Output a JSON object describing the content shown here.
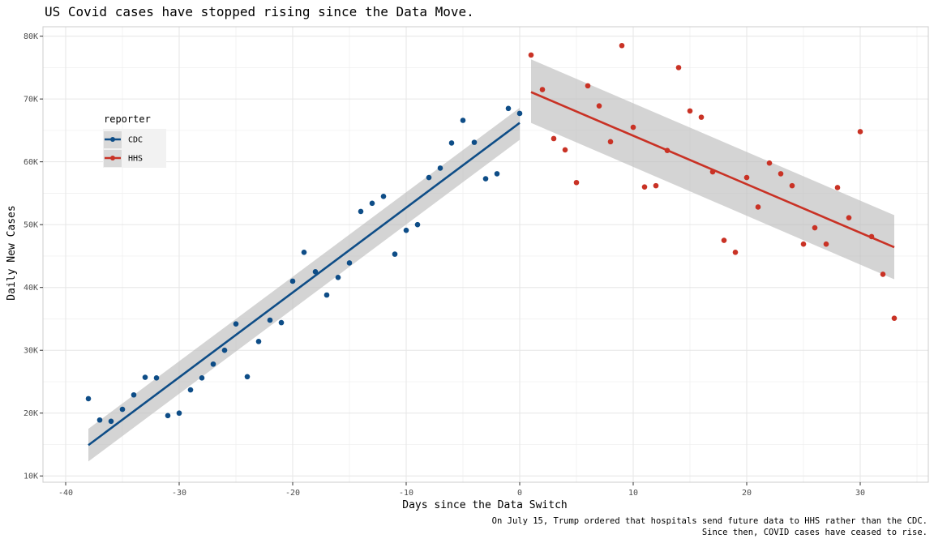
{
  "chart_data": {
    "type": "scatter",
    "title": "US Covid cases have stopped rising since the Data Move.",
    "xlabel": "Days since the Data Switch",
    "ylabel": "Daily New Cases",
    "xlim": [
      -42,
      36
    ],
    "ylim": [
      9000,
      81500
    ],
    "x_ticks": [
      -40,
      -30,
      -20,
      -10,
      0,
      10,
      20,
      30
    ],
    "x_tick_labels": [
      "-40",
      "-30",
      "-20",
      "-10",
      "0",
      "10",
      "20",
      "30"
    ],
    "y_ticks": [
      10000,
      20000,
      30000,
      40000,
      50000,
      60000,
      70000,
      80000
    ],
    "y_tick_labels": [
      "10K",
      "20K",
      "30K",
      "40K",
      "50K",
      "60K",
      "70K",
      "80K"
    ],
    "grid": true,
    "legend": {
      "title": "reporter",
      "placement": "left"
    },
    "caption": [
      "On July 15, Trump ordered that hospitals send future data to HHS rather than the CDC.",
      "Since then, COVID cases have ceased to rise."
    ],
    "series": [
      {
        "name": "CDC",
        "color": "#0e4d87",
        "fit": {
          "x": [
            -38,
            0
          ],
          "y": [
            14900,
            66200
          ],
          "ci_lower": [
            12300,
            63500
          ],
          "ci_upper": [
            17500,
            68600
          ]
        },
        "points": [
          [
            -38,
            22300
          ],
          [
            -37,
            18900
          ],
          [
            -36,
            18700
          ],
          [
            -35,
            20600
          ],
          [
            -34,
            22900
          ],
          [
            -33,
            25700
          ],
          [
            -32,
            25600
          ],
          [
            -31,
            19600
          ],
          [
            -30,
            20000
          ],
          [
            -29,
            23700
          ],
          [
            -28,
            25600
          ],
          [
            -27,
            27800
          ],
          [
            -26,
            30000
          ],
          [
            -25,
            34200
          ],
          [
            -24,
            25800
          ],
          [
            -23,
            31400
          ],
          [
            -22,
            34800
          ],
          [
            -21,
            34400
          ],
          [
            -20,
            41000
          ],
          [
            -19,
            45600
          ],
          [
            -18,
            42500
          ],
          [
            -17,
            38800
          ],
          [
            -16,
            41600
          ],
          [
            -15,
            43900
          ],
          [
            -14,
            52100
          ],
          [
            -13,
            53400
          ],
          [
            -12,
            54500
          ],
          [
            -11,
            45300
          ],
          [
            -10,
            49100
          ],
          [
            -9,
            50000
          ],
          [
            -8,
            57500
          ],
          [
            -7,
            59000
          ],
          [
            -6,
            63000
          ],
          [
            -5,
            66600
          ],
          [
            -4,
            63100
          ],
          [
            -3,
            57300
          ],
          [
            -2,
            58100
          ],
          [
            -1,
            68500
          ],
          [
            0,
            67700
          ]
        ]
      },
      {
        "name": "HHS",
        "color": "#c93225",
        "fit": {
          "x": [
            1,
            33
          ],
          "y": [
            71100,
            46400
          ],
          "ci_lower": [
            66200,
            41300
          ],
          "ci_upper": [
            76300,
            51500
          ]
        },
        "points": [
          [
            1,
            77000
          ],
          [
            2,
            71500
          ],
          [
            3,
            63700
          ],
          [
            4,
            61900
          ],
          [
            5,
            56700
          ],
          [
            6,
            72100
          ],
          [
            7,
            68900
          ],
          [
            8,
            63200
          ],
          [
            9,
            78500
          ],
          [
            10,
            65500
          ],
          [
            11,
            56000
          ],
          [
            12,
            56200
          ],
          [
            13,
            61800
          ],
          [
            14,
            75000
          ],
          [
            15,
            68100
          ],
          [
            16,
            67100
          ],
          [
            17,
            58400
          ],
          [
            18,
            47500
          ],
          [
            19,
            45600
          ],
          [
            20,
            57500
          ],
          [
            21,
            52800
          ],
          [
            22,
            59800
          ],
          [
            23,
            58100
          ],
          [
            24,
            56200
          ],
          [
            25,
            46900
          ],
          [
            26,
            49500
          ],
          [
            27,
            46900
          ],
          [
            28,
            55900
          ],
          [
            29,
            51100
          ],
          [
            30,
            64800
          ],
          [
            31,
            48100
          ],
          [
            32,
            42100
          ],
          [
            33,
            35100
          ]
        ]
      }
    ]
  }
}
